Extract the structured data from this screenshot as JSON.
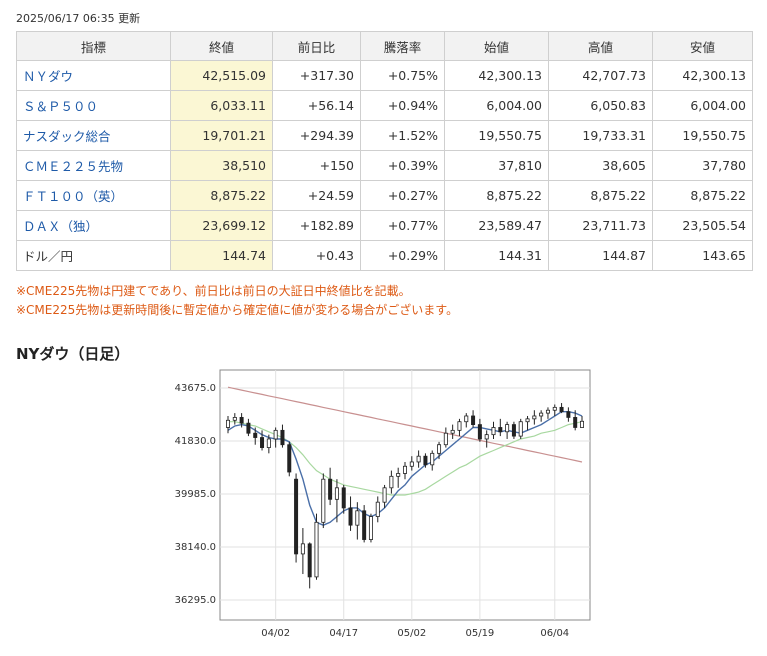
{
  "timestamp": "2025/06/17 06:35 更新",
  "table": {
    "headers": [
      "指標",
      "終値",
      "前日比",
      "騰落率",
      "始値",
      "高値",
      "安値"
    ],
    "rows": [
      {
        "name": "ＮＹダウ",
        "link": true,
        "close": "42,515.09",
        "change": "+317.30",
        "pct": "+0.75%",
        "open": "42,300.13",
        "high": "42,707.73",
        "low": "42,300.13"
      },
      {
        "name": "Ｓ＆Ｐ５００",
        "link": true,
        "close": "6,033.11",
        "change": "+56.14",
        "pct": "+0.94%",
        "open": "6,004.00",
        "high": "6,050.83",
        "low": "6,004.00"
      },
      {
        "name": "ナスダック総合",
        "link": true,
        "close": "19,701.21",
        "change": "+294.39",
        "pct": "+1.52%",
        "open": "19,550.75",
        "high": "19,733.31",
        "low": "19,550.75"
      },
      {
        "name": "ＣＭＥ２２５先物",
        "link": true,
        "close": "38,510",
        "change": "+150",
        "pct": "+0.39%",
        "open": "37,810",
        "high": "38,605",
        "low": "37,780"
      },
      {
        "name": "ＦＴ１００（英）",
        "link": true,
        "close": "8,875.22",
        "change": "+24.59",
        "pct": "+0.27%",
        "open": "8,875.22",
        "high": "8,875.22",
        "low": "8,875.22"
      },
      {
        "name": "ＤＡＸ（独）",
        "link": true,
        "close": "23,699.12",
        "change": "+182.89",
        "pct": "+0.77%",
        "open": "23,589.47",
        "high": "23,711.73",
        "low": "23,505.54"
      },
      {
        "name": "ドル／円",
        "link": false,
        "close": "144.74",
        "change": "+0.43",
        "pct": "+0.29%",
        "open": "144.31",
        "high": "144.87",
        "low": "143.65"
      }
    ]
  },
  "notes": [
    "※CME225先物は円建てであり、前日比は前日の大証日中終値比を記載。",
    "※CME225先物は更新時間後に暫定値から確定値に値が変わる場合がございます。"
  ],
  "chart_section_title": "NYダウ（日足）",
  "colors": {
    "up": "#e0241d",
    "note": "#dd5a15",
    "link": "#1e5aa8",
    "close_bg": "#fbf7d4",
    "ma_short": "#4a6fa8",
    "ma_mid": "#a8d8a0",
    "ma_long": "#c89090"
  },
  "chart_data": {
    "type": "line",
    "title": "",
    "ylim": [
      35600,
      44300
    ],
    "yticks": [
      36295.0,
      38140.0,
      39985.0,
      41830.0,
      43675.0
    ],
    "ytick_labels": [
      "36295.0",
      "38140.0",
      "39985.0",
      "41830.0",
      "43675.0"
    ],
    "xtick_labels": [
      {
        "label": "04/02",
        "index": 7
      },
      {
        "label": "04/17",
        "index": 17
      },
      {
        "label": "05/02",
        "index": 27
      },
      {
        "label": "05/19",
        "index": 37
      },
      {
        "label": "06/04",
        "index": 48
      }
    ],
    "candles": [
      [
        42300,
        42700,
        42100,
        42550
      ],
      [
        42550,
        42800,
        42400,
        42650
      ],
      [
        42650,
        42800,
        42300,
        42450
      ],
      [
        42450,
        42600,
        42000,
        42100
      ],
      [
        42100,
        42300,
        41700,
        41950
      ],
      [
        41950,
        42200,
        41500,
        41600
      ],
      [
        41600,
        42050,
        41400,
        41900
      ],
      [
        41900,
        42300,
        41600,
        42200
      ],
      [
        42200,
        42400,
        41600,
        41700
      ],
      [
        41700,
        41800,
        40600,
        40750
      ],
      [
        40500,
        40700,
        37600,
        37900
      ],
      [
        37900,
        38800,
        37200,
        38250
      ],
      [
        38250,
        38300,
        36700,
        37100
      ],
      [
        37100,
        39300,
        37000,
        39000
      ],
      [
        39000,
        40700,
        38800,
        40500
      ],
      [
        40500,
        40900,
        39600,
        39800
      ],
      [
        39800,
        40500,
        39000,
        40200
      ],
      [
        40200,
        40300,
        39300,
        39500
      ],
      [
        39500,
        39900,
        38700,
        38900
      ],
      [
        38900,
        39700,
        38400,
        39400
      ],
      [
        39400,
        39600,
        38300,
        38400
      ],
      [
        38400,
        39300,
        38300,
        39200
      ],
      [
        39200,
        39900,
        39000,
        39700
      ],
      [
        39700,
        40300,
        39500,
        40200
      ],
      [
        40200,
        40800,
        40000,
        40600
      ],
      [
        40600,
        40900,
        40200,
        40700
      ],
      [
        40700,
        41100,
        40500,
        40950
      ],
      [
        40950,
        41300,
        40800,
        41100
      ],
      [
        41100,
        41500,
        40900,
        41300
      ],
      [
        41300,
        41400,
        40900,
        41000
      ],
      [
        41000,
        41500,
        40800,
        41400
      ],
      [
        41400,
        41800,
        41200,
        41700
      ],
      [
        41700,
        42300,
        41600,
        42100
      ],
      [
        42100,
        42400,
        41900,
        42200
      ],
      [
        42200,
        42600,
        42000,
        42500
      ],
      [
        42500,
        42800,
        42300,
        42700
      ],
      [
        42700,
        42900,
        42300,
        42400
      ],
      [
        42400,
        42600,
        41800,
        41900
      ],
      [
        41900,
        42200,
        41600,
        42050
      ],
      [
        42050,
        42500,
        41900,
        42300
      ],
      [
        42300,
        42600,
        42000,
        42150
      ],
      [
        42150,
        42500,
        41900,
        42400
      ],
      [
        42400,
        42500,
        41900,
        42000
      ],
      [
        42000,
        42600,
        41900,
        42500
      ],
      [
        42500,
        42700,
        42200,
        42600
      ],
      [
        42600,
        42900,
        42400,
        42700
      ],
      [
        42700,
        42900,
        42500,
        42800
      ],
      [
        42800,
        43000,
        42600,
        42900
      ],
      [
        42900,
        43100,
        42700,
        43000
      ],
      [
        43000,
        43150,
        42800,
        42850
      ],
      [
        42850,
        43000,
        42500,
        42650
      ],
      [
        42650,
        42900,
        42200,
        42300
      ],
      [
        42300,
        42700,
        42300,
        42515
      ]
    ],
    "series": [
      {
        "values": [
          42200,
          42350,
          42400,
          42350,
          42200,
          42050,
          41950,
          41900,
          41900,
          41800,
          41200,
          40500,
          39600,
          39000,
          38900,
          39000,
          39200,
          39400,
          39500,
          39500,
          39300,
          39200,
          39300,
          39500,
          39800,
          40100,
          40300,
          40600,
          40800,
          41000,
          41100,
          41300,
          41500,
          41700,
          41900,
          42100,
          42300,
          42300,
          42250,
          42200,
          42150,
          42200,
          42150,
          42100,
          42200,
          42300,
          42400,
          42550,
          42700,
          42850,
          42850,
          42800,
          42700
        ]
      },
      {
        "values": [
          42500,
          42500,
          42450,
          42400,
          42350,
          42250,
          42150,
          42050,
          41950,
          41800,
          41600,
          41350,
          41050,
          40800,
          40650,
          40500,
          40400,
          40300,
          40250,
          40200,
          40150,
          40100,
          40050,
          40000,
          39950,
          39950,
          39950,
          40000,
          40050,
          40150,
          40300,
          40450,
          40600,
          40750,
          40900,
          41000,
          41150,
          41300,
          41400,
          41500,
          41600,
          41700,
          41800,
          41900,
          41950,
          42000,
          42100,
          42150,
          42200,
          42300,
          42400,
          42450,
          42500
        ]
      },
      {
        "values": [
          43700,
          43650,
          43600,
          43550,
          43500,
          43450,
          43400,
          43350,
          43300,
          43250,
          43200,
          43150,
          43100,
          43050,
          43000,
          42950,
          42900,
          42850,
          42800,
          42750,
          42700,
          42650,
          42600,
          42550,
          42500,
          42450,
          42400,
          42350,
          42300,
          42250,
          42200,
          42150,
          42100,
          42050,
          42000,
          41950,
          41900,
          41850,
          41800,
          41750,
          41700,
          41650,
          41600,
          41550,
          41500,
          41450,
          41400,
          41350,
          41300,
          41250,
          41200,
          41150,
          41100
        ]
      }
    ]
  }
}
